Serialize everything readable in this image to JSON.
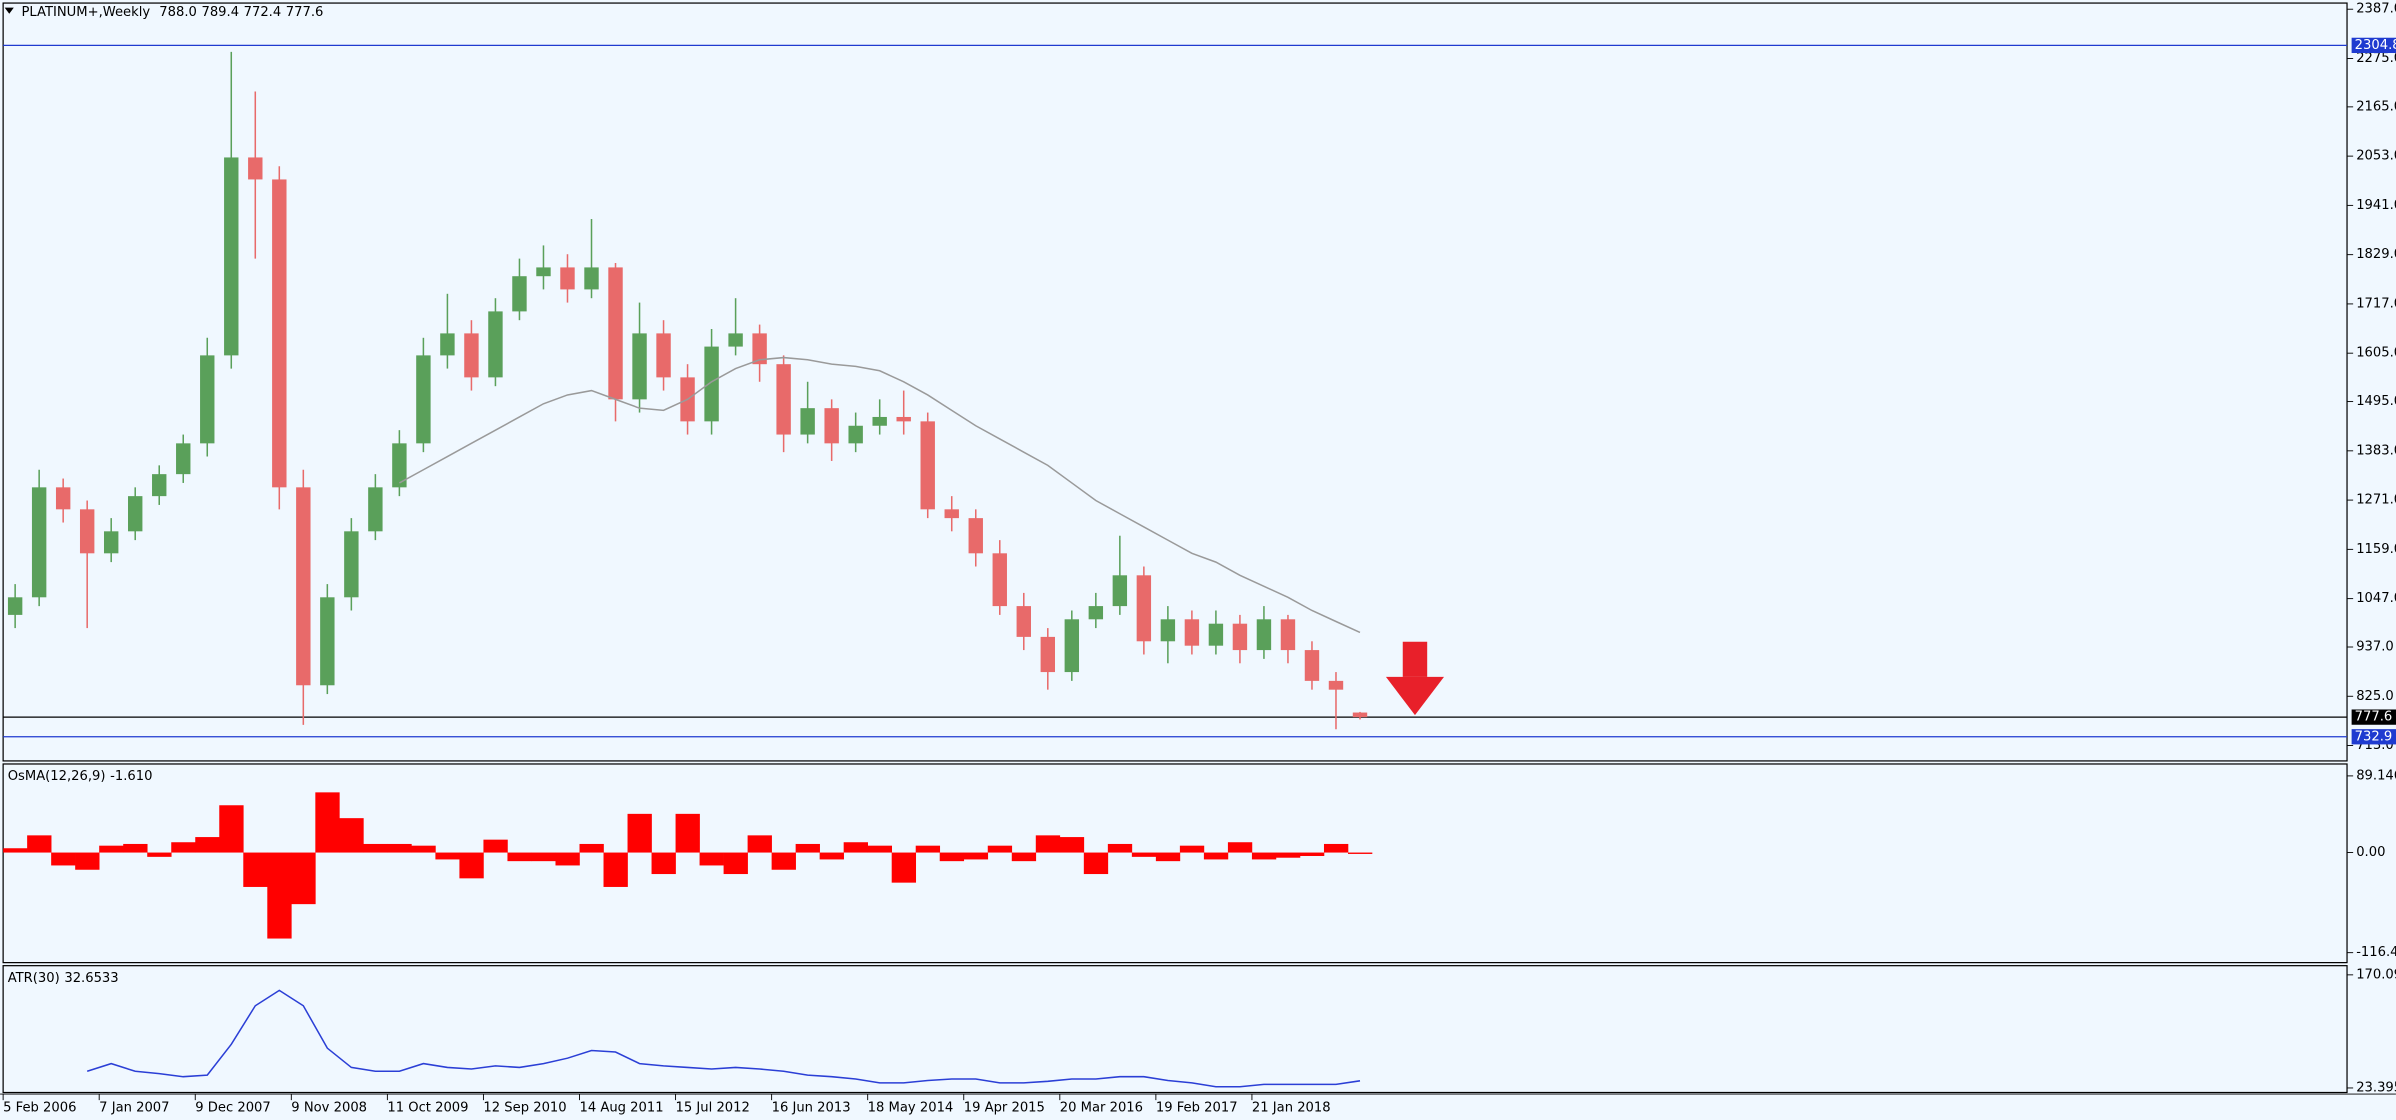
{
  "chart_data": [
    {
      "type": "candlestick",
      "title": "PLATINUM+,Weekly",
      "header_values": [
        {
          "value": 788.0,
          "label": "788.0"
        },
        {
          "value": 789.4,
          "label": "789.4"
        },
        {
          "value": 772.4,
          "label": "772.4"
        },
        {
          "value": 777.6,
          "label": "777.6"
        }
      ],
      "open": [
        1010,
        1050,
        1300,
        1250,
        1150,
        1200,
        1280,
        1330,
        1400,
        1600,
        2050,
        2000,
        1300,
        850,
        1050,
        1200,
        1300,
        1400,
        1600,
        1650,
        1550,
        1700,
        1780,
        1800,
        1750,
        1800,
        1500,
        1650,
        1550,
        1450,
        1620,
        1650,
        1580,
        1420,
        1480,
        1400,
        1440,
        1460,
        1450,
        1250,
        1230,
        1150,
        1030,
        960,
        880,
        1000,
        1030,
        1100,
        950,
        1000,
        940,
        990,
        930,
        1000,
        930,
        860,
        788.0
      ],
      "high": [
        1080,
        1340,
        1320,
        1270,
        1230,
        1300,
        1350,
        1420,
        1640,
        2290,
        2200,
        2030,
        1340,
        1080,
        1230,
        1330,
        1430,
        1640,
        1740,
        1680,
        1730,
        1820,
        1850,
        1830,
        1910,
        1810,
        1720,
        1680,
        1580,
        1660,
        1730,
        1670,
        1600,
        1540,
        1500,
        1470,
        1500,
        1520,
        1470,
        1280,
        1250,
        1180,
        1060,
        980,
        1020,
        1060,
        1190,
        1120,
        1030,
        1020,
        1020,
        1010,
        1030,
        1010,
        950,
        880,
        789.4
      ],
      "low": [
        980,
        1030,
        1220,
        980,
        1130,
        1180,
        1260,
        1310,
        1370,
        1570,
        1820,
        1250,
        760,
        830,
        1020,
        1180,
        1280,
        1380,
        1570,
        1520,
        1530,
        1680,
        1750,
        1720,
        1730,
        1450,
        1470,
        1520,
        1420,
        1420,
        1600,
        1540,
        1380,
        1400,
        1360,
        1380,
        1420,
        1420,
        1230,
        1200,
        1120,
        1010,
        930,
        840,
        860,
        980,
        1010,
        920,
        900,
        920,
        920,
        900,
        910,
        900,
        840,
        750,
        772.4
      ],
      "close": [
        1050,
        1300,
        1250,
        1150,
        1200,
        1280,
        1330,
        1400,
        1600,
        2050,
        2000,
        1300,
        850,
        1050,
        1200,
        1300,
        1400,
        1600,
        1650,
        1550,
        1700,
        1780,
        1800,
        1750,
        1800,
        1500,
        1650,
        1550,
        1450,
        1620,
        1650,
        1580,
        1420,
        1480,
        1400,
        1440,
        1460,
        1450,
        1250,
        1230,
        1150,
        1030,
        960,
        880,
        1000,
        1030,
        1100,
        950,
        1000,
        940,
        990,
        930,
        1000,
        930,
        860,
        840,
        777.6
      ],
      "up_color": "#5aa05a",
      "down_color": "#e86a6a",
      "overlay": {
        "color": "#9a9a9a",
        "values": [
          null,
          null,
          null,
          null,
          null,
          null,
          null,
          null,
          null,
          null,
          null,
          null,
          null,
          null,
          null,
          null,
          1310,
          1340,
          1370,
          1400,
          1430,
          1460,
          1490,
          1510,
          1520,
          1500,
          1480,
          1475,
          1500,
          1540,
          1570,
          1590,
          1595,
          1590,
          1580,
          1575,
          1565,
          1540,
          1510,
          1475,
          1440,
          1410,
          1380,
          1350,
          1310,
          1270,
          1240,
          1210,
          1180,
          1150,
          1130,
          1100,
          1075,
          1050,
          1020,
          995,
          970
        ]
      },
      "levels": [
        {
          "value": 2304.8,
          "color": "#1f3bd0"
        },
        {
          "value": 777.6,
          "color": "#000000"
        },
        {
          "value": 732.9,
          "color": "#1f3bd0"
        }
      ],
      "xlim": [
        0,
        97.6
      ],
      "xticks": [
        {
          "value": 0,
          "label": "5 Feb 2006"
        },
        {
          "value": 4,
          "label": "7 Jan 2007"
        },
        {
          "value": 8,
          "label": "9 Dec 2007"
        },
        {
          "value": 12,
          "label": "9 Nov 2008"
        },
        {
          "value": 16,
          "label": "11 Oct 2009"
        },
        {
          "value": 20,
          "label": "12 Sep 2010"
        },
        {
          "value": 24,
          "label": "14 Aug 2011"
        },
        {
          "value": 28,
          "label": "15 Jul 2012"
        },
        {
          "value": 32,
          "label": "16 Jun 2013"
        },
        {
          "value": 36,
          "label": "18 May 2014"
        },
        {
          "value": 40,
          "label": "19 Apr 2015"
        },
        {
          "value": 44,
          "label": "20 Mar 2016"
        },
        {
          "value": 48,
          "label": "19 Feb 2017"
        },
        {
          "value": 52,
          "label": "21 Jan 2018"
        }
      ],
      "ylim": [
        678,
        2401
      ],
      "yticks": [
        {
          "value": 2387,
          "label": "2387.0"
        },
        {
          "value": 2275,
          "label": "2275.0"
        },
        {
          "value": 2165,
          "label": "2165.0"
        },
        {
          "value": 2053,
          "label": "2053.0"
        },
        {
          "value": 1941,
          "label": "1941.0"
        },
        {
          "value": 1829,
          "label": "1829.0"
        },
        {
          "value": 1717,
          "label": "1717.0"
        },
        {
          "value": 1605,
          "label": "1605.0"
        },
        {
          "value": 1495,
          "label": "1495.0"
        },
        {
          "value": 1383,
          "label": "1383.0"
        },
        {
          "value": 1271,
          "label": "1271.0"
        },
        {
          "value": 1159,
          "label": "1159.0"
        },
        {
          "value": 1047,
          "label": "1047.0"
        },
        {
          "value": 937,
          "label": "937.0"
        },
        {
          "value": 825,
          "label": "825.0"
        },
        {
          "value": 713,
          "label": "713.0"
        }
      ]
    },
    {
      "type": "histogram",
      "title": "OsMA(12,26,9)",
      "current": {
        "value": -1.61,
        "label": "-1.610"
      },
      "values": [
        5,
        20,
        -15,
        -20,
        8,
        10,
        -5,
        12,
        18,
        55,
        -40,
        -100,
        -60,
        70,
        40,
        10,
        10,
        8,
        -8,
        -30,
        15,
        -10,
        -10,
        -15,
        10,
        -40,
        45,
        -25,
        45,
        -15,
        -25,
        20,
        -20,
        10,
        -8,
        12,
        8,
        -35,
        8,
        -10,
        -8,
        8,
        -10,
        20,
        18,
        -25,
        10,
        -5,
        -10,
        8,
        -8,
        12,
        -8,
        -6,
        -4,
        10,
        -1.61
      ],
      "color": "#ff0000",
      "ylim": [
        -128,
        103
      ],
      "yticks": [
        89.146,
        {
          "value": 0,
          "label": "0.00"
        },
        -116.42
      ]
    },
    {
      "type": "line",
      "title": "ATR(30)",
      "current": 32.6533,
      "values": [
        null,
        null,
        null,
        45,
        55,
        45,
        42,
        38,
        40,
        80,
        130,
        150,
        130,
        75,
        50,
        45,
        45,
        55,
        50,
        48,
        52,
        50,
        55,
        62,
        72,
        70,
        55,
        52,
        50,
        48,
        50,
        48,
        45,
        40,
        38,
        35,
        30,
        30,
        33,
        35,
        35,
        30,
        30,
        32,
        35,
        35,
        38,
        38,
        33,
        30,
        25,
        25,
        28,
        28,
        28,
        28,
        32.6533
      ],
      "color": "#2b3fd6",
      "ylim": [
        17.5,
        182
      ],
      "yticks": [
        170.093,
        23.3953
      ]
    }
  ]
}
